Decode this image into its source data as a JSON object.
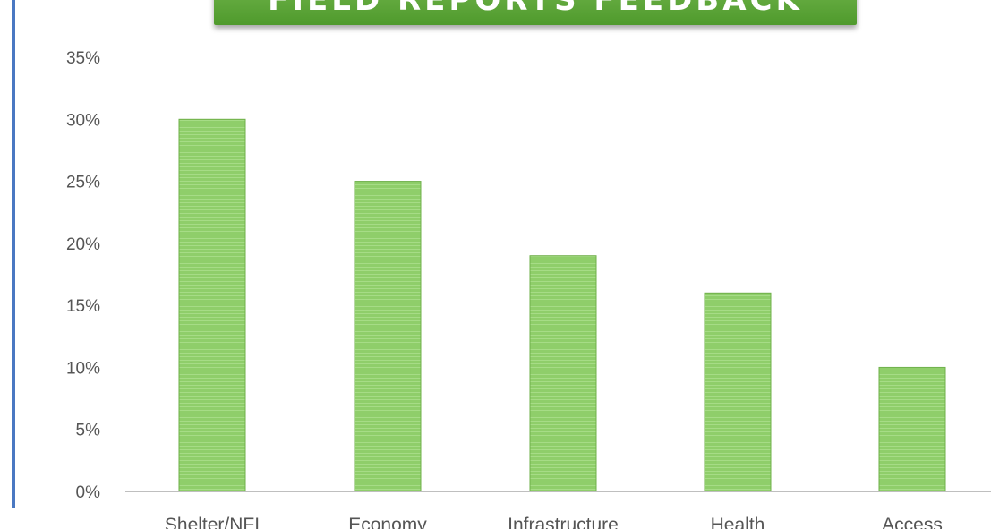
{
  "chart_data": {
    "type": "bar",
    "title": "FIELD REPORTS FEEDBACK",
    "categories": [
      "Shelter/NFI",
      "Economy",
      "Infrastructure",
      "Health",
      "Access"
    ],
    "values": [
      30,
      25,
      19,
      16,
      10
    ],
    "yticks": [
      "0%",
      "5%",
      "10%",
      "15%",
      "20%",
      "25%",
      "30%",
      "35%"
    ],
    "ylim": [
      0,
      35
    ],
    "xlabel": "",
    "ylabel": "",
    "grid": false,
    "bar_color": "#8fce6a",
    "bar_edge_color": "#6fb04a",
    "axis_color": "#bfbfbf",
    "tick_text_color": "#555555",
    "title_bg_color": "#5aa636"
  }
}
